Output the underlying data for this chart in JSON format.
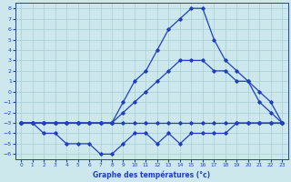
{
  "xlabel": "Graphe des températures (°c)",
  "xlim": [
    -0.5,
    23.5
  ],
  "ylim": [
    -6.5,
    8.5
  ],
  "yticks": [
    8,
    7,
    6,
    5,
    4,
    3,
    2,
    1,
    0,
    -1,
    -2,
    -3,
    -4,
    -5,
    -6
  ],
  "xticks": [
    0,
    1,
    2,
    3,
    4,
    5,
    6,
    7,
    8,
    9,
    10,
    11,
    12,
    13,
    14,
    15,
    16,
    17,
    18,
    19,
    20,
    21,
    22,
    23
  ],
  "background_color": "#cce8ec",
  "grid_color": "#a8ccd4",
  "line_color": "#2040bb",
  "line1_x": [
    0,
    1,
    2,
    3,
    4,
    5,
    6,
    7,
    8,
    9,
    10,
    11,
    12,
    13,
    14,
    15,
    16,
    17,
    18,
    19,
    20,
    21,
    22,
    23
  ],
  "line1_y": [
    -3,
    -3,
    -4,
    -4,
    -5,
    -5,
    -5,
    -6,
    -6,
    -5,
    -4,
    -4,
    -5,
    -4,
    -5,
    -4,
    -4,
    -4,
    -4,
    -3,
    -3,
    -3,
    -3,
    -3
  ],
  "line2_x": [
    0,
    1,
    2,
    3,
    4,
    5,
    6,
    7,
    8,
    9,
    10,
    11,
    12,
    13,
    14,
    15,
    16,
    17,
    18,
    19,
    20,
    21,
    22,
    23
  ],
  "line2_y": [
    -3,
    -3,
    -3,
    -3,
    -3,
    -3,
    -3,
    -3,
    -3,
    -3,
    -3,
    -3,
    -3,
    -3,
    -3,
    -3,
    -3,
    -3,
    -3,
    -3,
    -3,
    -3,
    -3,
    -3
  ],
  "line3_x": [
    0,
    1,
    2,
    3,
    4,
    5,
    6,
    7,
    8,
    9,
    10,
    11,
    12,
    13,
    14,
    15,
    16,
    17,
    18,
    19,
    20,
    21,
    22,
    23
  ],
  "line3_y": [
    -3,
    -3,
    -3,
    -3,
    -3,
    -3,
    -3,
    -3,
    -3,
    -2,
    -1,
    0,
    1,
    2,
    3,
    3,
    3,
    2,
    2,
    1,
    1,
    0,
    -1,
    -3
  ],
  "line4_x": [
    0,
    1,
    2,
    3,
    4,
    5,
    6,
    7,
    8,
    9,
    10,
    11,
    12,
    13,
    14,
    15,
    16,
    17,
    18,
    19,
    20,
    21,
    22,
    23
  ],
  "line4_y": [
    -3,
    -3,
    -3,
    -3,
    -3,
    -3,
    -3,
    -3,
    -3,
    -1,
    1,
    2,
    4,
    6,
    7,
    8,
    8,
    5,
    3,
    2,
    1,
    -1,
    -2,
    -3
  ]
}
